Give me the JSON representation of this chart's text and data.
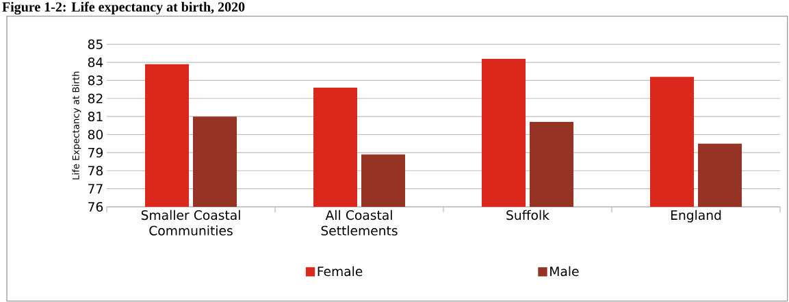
{
  "chart_data": {
    "type": "bar",
    "title": "Figure 1-2: Life expectancy at birth, 2020",
    "ylabel": "Life Expectancy at Birth",
    "categories": [
      "Smaller Coastal Communities",
      "All Coastal Settlements",
      "Suffolk",
      "England"
    ],
    "series": [
      {
        "name": "Female",
        "color": "#da291c",
        "values": [
          83.9,
          82.6,
          84.2,
          83.2
        ]
      },
      {
        "name": "Male",
        "color": "#953324",
        "values": [
          81.0,
          78.9,
          80.7,
          79.5
        ]
      }
    ],
    "ylim": [
      76,
      85
    ],
    "yticks": [
      76,
      77,
      78,
      79,
      80,
      81,
      82,
      83,
      84,
      85
    ],
    "grid": "y",
    "legend": "bottom"
  }
}
